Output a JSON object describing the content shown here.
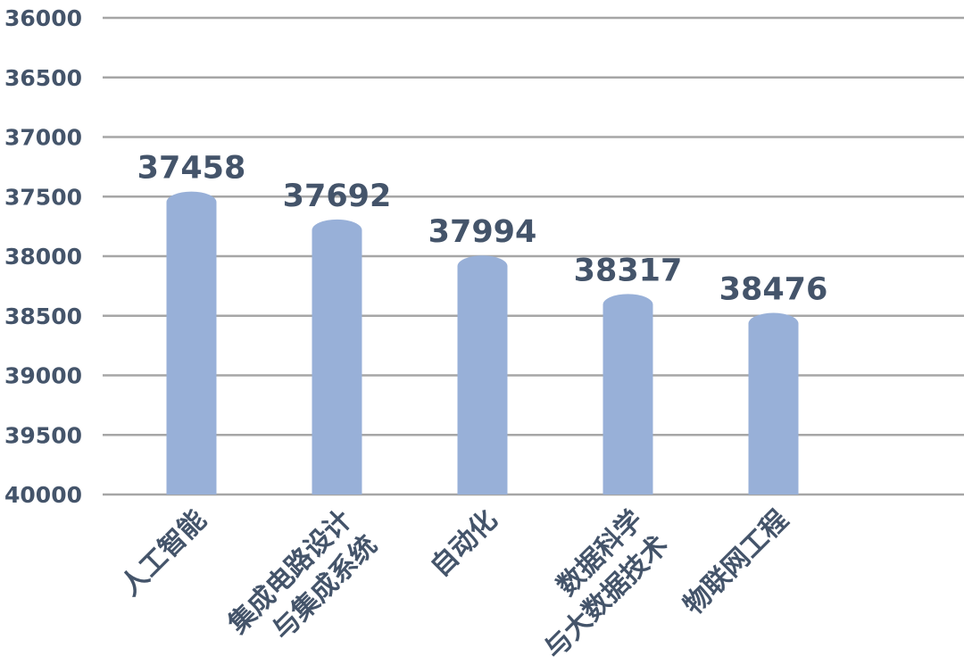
{
  "chart_data": {
    "type": "bar",
    "categories": [
      [
        "人工智能"
      ],
      [
        "集成电路设计",
        "与集成系统"
      ],
      [
        "自动化"
      ],
      [
        "数据科学",
        "与大数据技术"
      ],
      [
        "物联网工程"
      ]
    ],
    "values": [
      37458,
      37692,
      37994,
      38317,
      38476
    ],
    "data_labels": [
      "37458",
      "37692",
      "37994",
      "38317",
      "38476"
    ],
    "y_axis": {
      "inverted": true,
      "ylim": [
        36000,
        40000
      ],
      "ticks": [
        "36000",
        "36500",
        "37000",
        "37500",
        "38000",
        "38500",
        "39000",
        "39500",
        "40000"
      ]
    },
    "grid": true,
    "title": "",
    "xlabel": "",
    "ylabel": "",
    "colors": {
      "bar": "#98b0d8",
      "text": "#44546a",
      "grid": "#a6a6a6"
    }
  }
}
